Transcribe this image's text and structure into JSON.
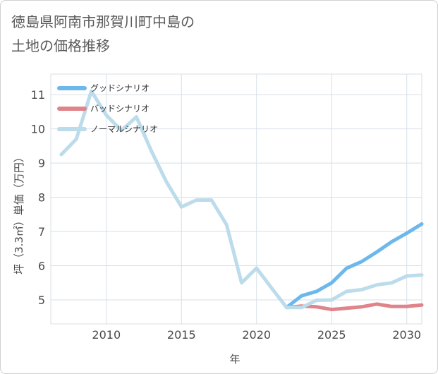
{
  "chart_data": {
    "type": "line",
    "title": "徳島県阿南市那賀川町中島の土地の価格推移",
    "title_lines": [
      "徳島県阿南市那賀川町中島の",
      "土地の価格推移"
    ],
    "xlabel": "年",
    "ylabel": "坪（3.3㎡）単価（万円）",
    "xlim": [
      2006.3,
      2031
    ],
    "ylim": [
      4.3,
      11.6
    ],
    "x_ticks": [
      2010,
      2015,
      2020,
      2025,
      2030
    ],
    "y_ticks": [
      5,
      6,
      7,
      8,
      9,
      10,
      11
    ],
    "grid": true,
    "legend_position": "top-left",
    "series": [
      {
        "name": "グッドシナリオ",
        "color": "#6cb8ec",
        "x": [
          2022,
          2023,
          2024,
          2025,
          2026,
          2027,
          2028,
          2029,
          2030,
          2031
        ],
        "values": [
          4.78,
          5.12,
          5.25,
          5.5,
          5.93,
          6.12,
          6.4,
          6.7,
          6.95,
          7.22
        ]
      },
      {
        "name": "バッドシナリオ",
        "color": "#e0848c",
        "x": [
          2022,
          2023,
          2024,
          2025,
          2026,
          2027,
          2028,
          2029,
          2030,
          2031
        ],
        "values": [
          4.78,
          4.82,
          4.8,
          4.72,
          4.76,
          4.8,
          4.88,
          4.81,
          4.81,
          4.85
        ]
      },
      {
        "name": "ノーマルシナリオ",
        "color": "#bcdcec",
        "x": [
          2007,
          2008,
          2009,
          2010,
          2011,
          2012,
          2013,
          2014,
          2015,
          2016,
          2017,
          2018,
          2019,
          2020,
          2021,
          2022,
          2023,
          2024,
          2025,
          2026,
          2027,
          2028,
          2029,
          2030,
          2031
        ],
        "values": [
          9.25,
          9.7,
          11.1,
          10.4,
          9.95,
          10.35,
          9.35,
          8.45,
          7.72,
          7.92,
          7.92,
          7.2,
          5.5,
          5.93,
          5.35,
          4.78,
          4.78,
          4.99,
          5.0,
          5.25,
          5.3,
          5.44,
          5.5,
          5.7,
          5.73
        ]
      }
    ]
  }
}
